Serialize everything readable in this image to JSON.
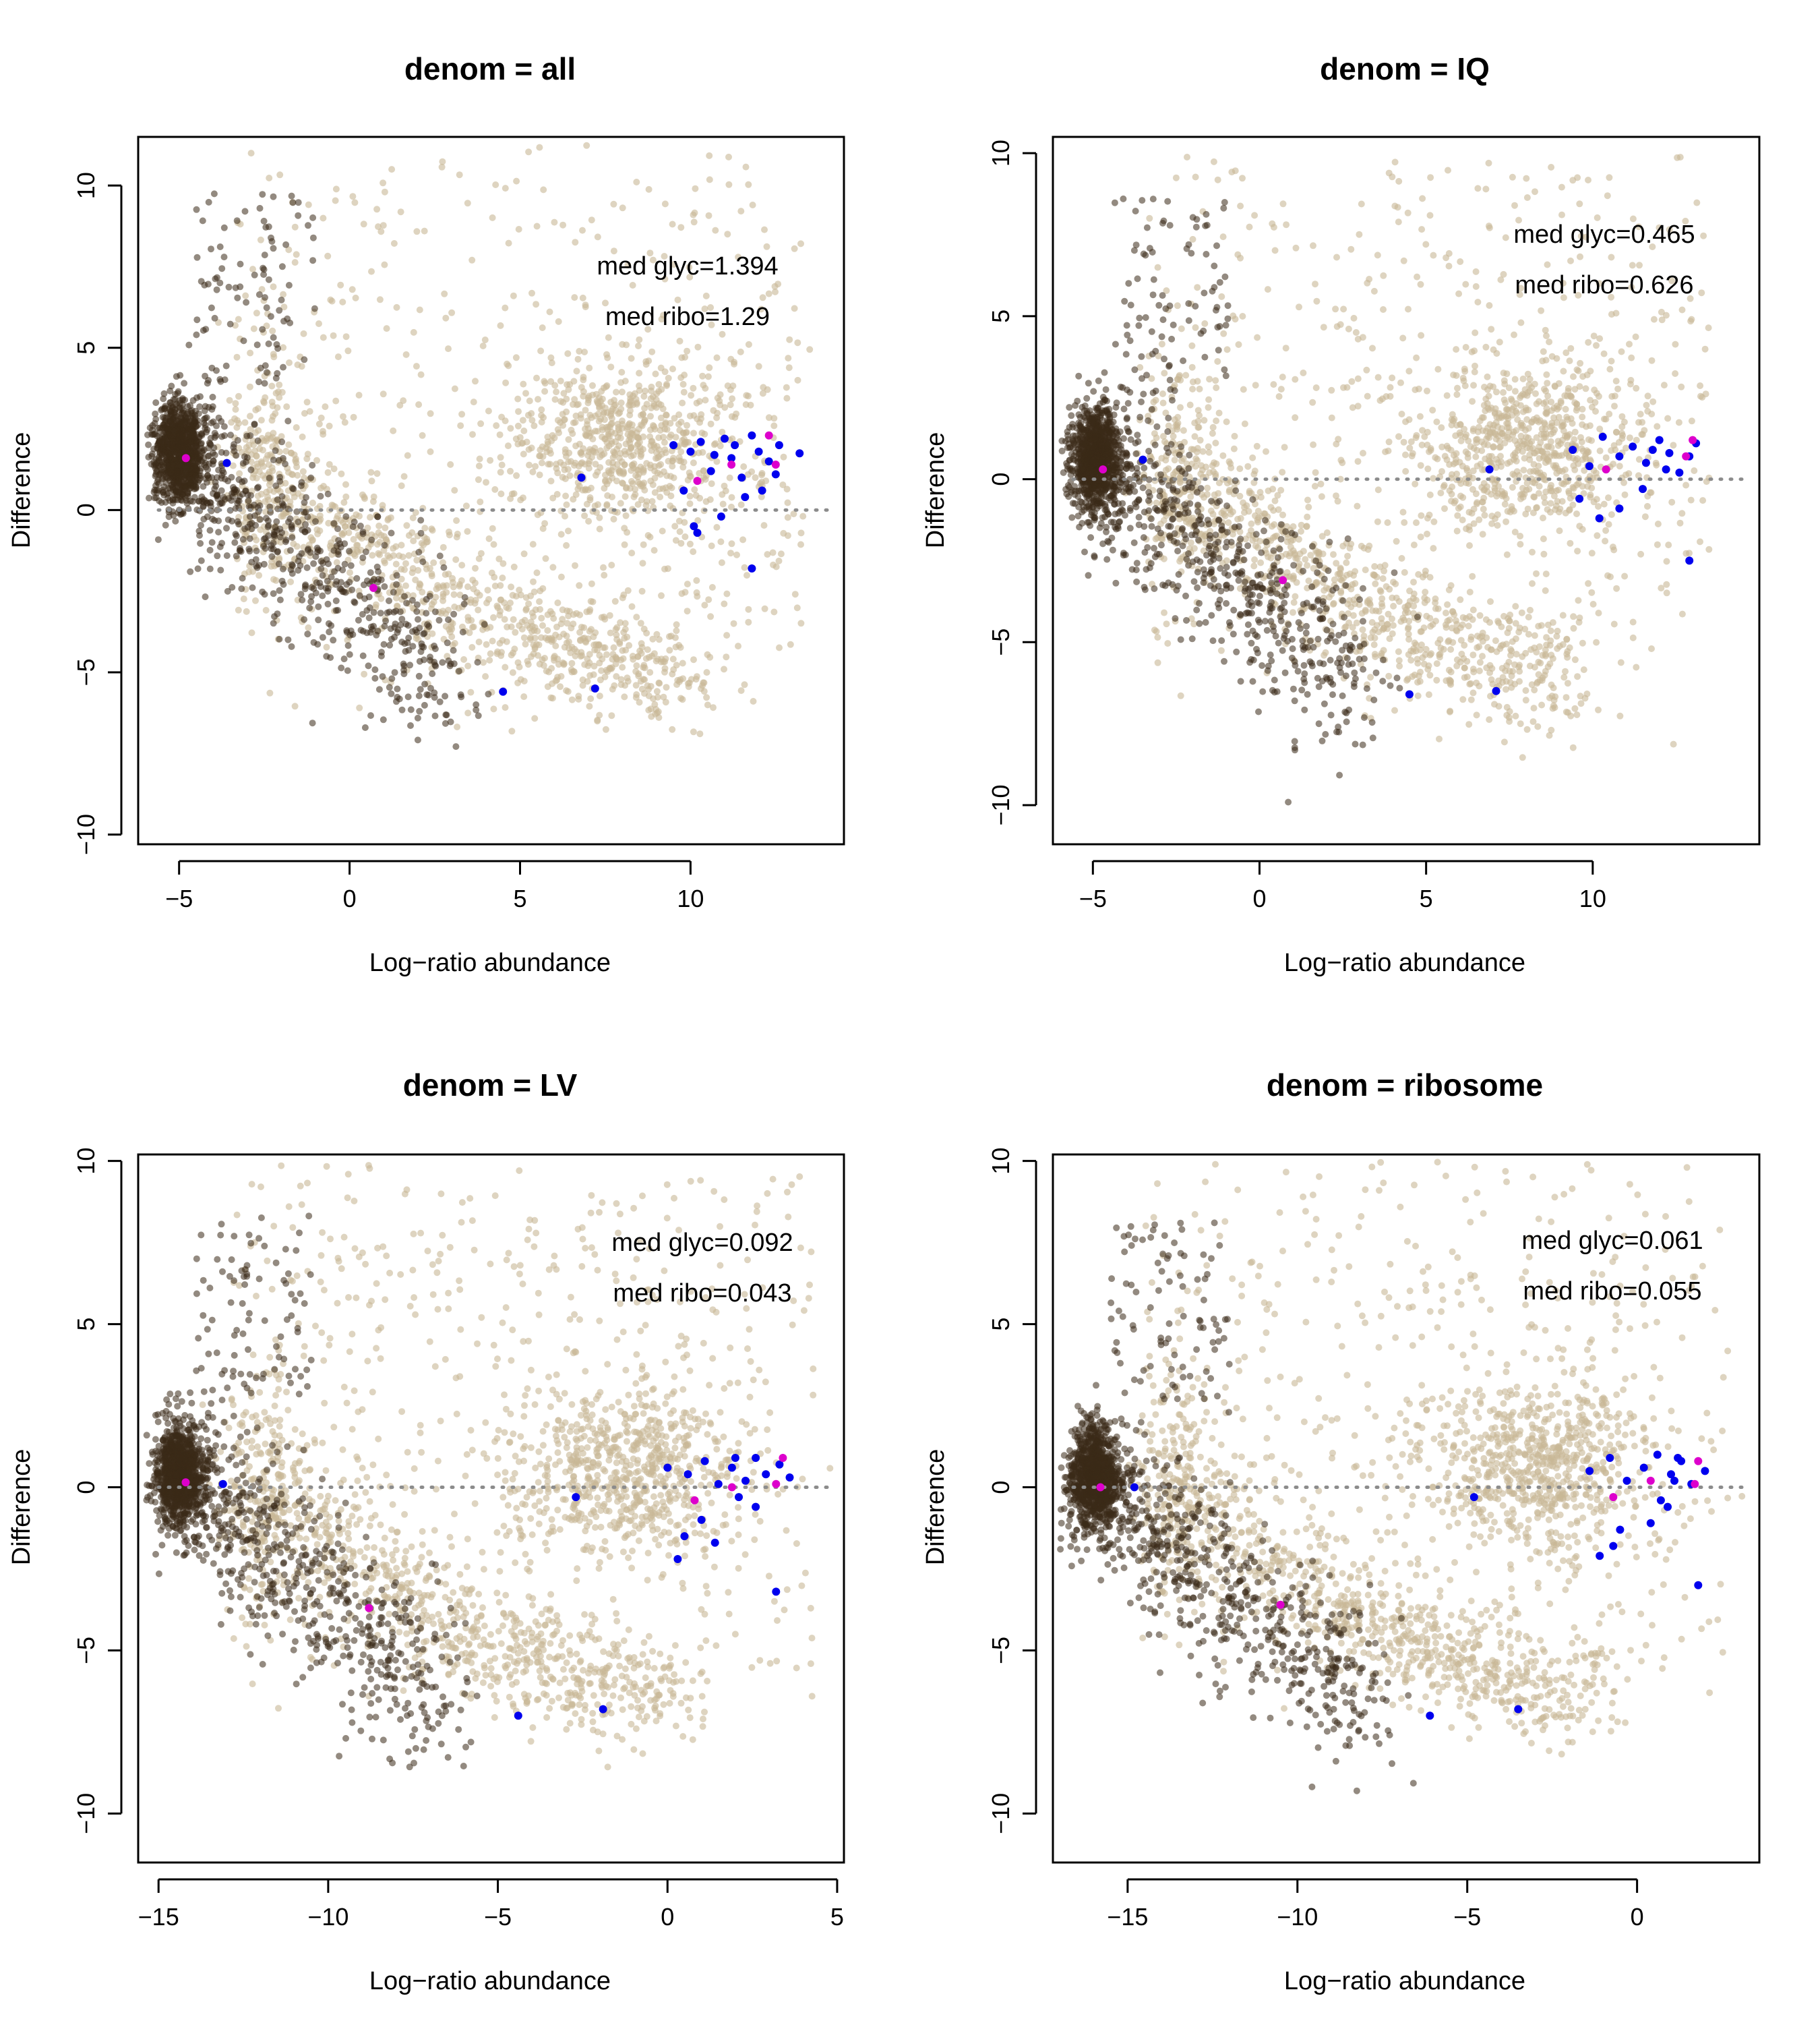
{
  "figure": {
    "colors": {
      "background": "#ffffff",
      "dense_points": "#3a2a17",
      "light_points": "#c8b896",
      "glyc_points": "#0000ee",
      "ribo_points": "#dd00cc",
      "zero_line": "#8c8c8c",
      "axis": "#000000"
    }
  },
  "chart_data": [
    {
      "type": "scatter",
      "title": "denom = all",
      "xlabel": "Log−ratio abundance",
      "ylabel": "Difference",
      "xlim": [
        -6.2,
        14.5
      ],
      "ylim": [
        -10.3,
        11.5
      ],
      "xticks": [
        -5,
        0,
        5,
        10
      ],
      "xtick_labels": [
        "−5",
        "0",
        "5",
        "10"
      ],
      "yticks": [
        -10,
        -5,
        0,
        5,
        10
      ],
      "ytick_labels": [
        "−10",
        "−5",
        "0",
        "5",
        "10"
      ],
      "zero_line": true,
      "grid": false,
      "annotations": [
        "med glyc=1.394",
        "med ribo=1.29"
      ],
      "glyc_points": [
        [
          -3.6,
          1.45
        ],
        [
          6.8,
          1.0
        ],
        [
          9.5,
          2.0
        ],
        [
          10.0,
          1.8
        ],
        [
          10.3,
          2.1
        ],
        [
          10.6,
          1.2
        ],
        [
          11.0,
          2.2
        ],
        [
          11.2,
          1.6
        ],
        [
          11.5,
          1.0
        ],
        [
          11.8,
          2.3
        ],
        [
          12.0,
          1.8
        ],
        [
          12.3,
          1.5
        ],
        [
          12.6,
          2.0
        ],
        [
          13.2,
          1.75
        ],
        [
          11.6,
          0.4
        ],
        [
          10.9,
          -0.2
        ],
        [
          10.1,
          -0.5
        ],
        [
          10.2,
          -0.7
        ],
        [
          9.8,
          0.6
        ],
        [
          11.8,
          -1.8
        ],
        [
          12.5,
          1.1
        ],
        [
          11.3,
          2.0
        ],
        [
          10.7,
          1.7
        ],
        [
          12.1,
          0.6
        ],
        [
          4.5,
          -5.6
        ],
        [
          7.2,
          -5.5
        ]
      ],
      "ribo_points": [
        [
          -4.8,
          1.6
        ],
        [
          10.2,
          0.9
        ],
        [
          11.2,
          1.4
        ],
        [
          12.3,
          2.3
        ],
        [
          12.5,
          1.4
        ],
        [
          0.7,
          -2.4
        ]
      ],
      "dense_cluster": {
        "x_mean": -5.0,
        "y_mean": 1.8
      },
      "light_cluster": {
        "x_mean": 8.0,
        "y_mean": 2.0
      },
      "light_arc": {
        "x_mean": 5.0,
        "y_mean": -5.3
      }
    },
    {
      "type": "scatter",
      "title": "denom = IQ",
      "xlabel": "Log−ratio abundance",
      "ylabel": "Difference",
      "xlim": [
        -6.2,
        15.0
      ],
      "ylim": [
        -11.2,
        10.5
      ],
      "xticks": [
        -5,
        0,
        5,
        10
      ],
      "xtick_labels": [
        "−5",
        "0",
        "5",
        "10"
      ],
      "yticks": [
        -10,
        -5,
        0,
        5,
        10
      ],
      "ytick_labels": [
        "−10",
        "−5",
        "0",
        "5",
        "10"
      ],
      "zero_line": true,
      "grid": false,
      "annotations": [
        "med glyc=0.465",
        "med ribo=0.626"
      ],
      "glyc_points": [
        [
          -3.5,
          0.6
        ],
        [
          6.9,
          0.3
        ],
        [
          9.4,
          0.9
        ],
        [
          9.9,
          0.4
        ],
        [
          10.3,
          1.3
        ],
        [
          10.8,
          0.7
        ],
        [
          11.2,
          1.0
        ],
        [
          11.6,
          0.5
        ],
        [
          12.0,
          1.2
        ],
        [
          12.3,
          0.8
        ],
        [
          12.6,
          0.2
        ],
        [
          12.9,
          0.7
        ],
        [
          13.1,
          1.1
        ],
        [
          11.5,
          -0.3
        ],
        [
          10.8,
          -0.9
        ],
        [
          10.2,
          -1.2
        ],
        [
          9.6,
          -0.6
        ],
        [
          12.9,
          -2.5
        ],
        [
          12.2,
          0.3
        ],
        [
          11.8,
          0.9
        ],
        [
          4.5,
          -6.6
        ],
        [
          7.1,
          -6.5
        ]
      ],
      "ribo_points": [
        [
          -4.7,
          0.3
        ],
        [
          10.4,
          0.3
        ],
        [
          12.8,
          0.7
        ],
        [
          13.0,
          1.2
        ],
        [
          0.7,
          -3.1
        ]
      ],
      "dense_cluster": {
        "x_mean": -4.9,
        "y_mean": 0.6
      },
      "light_cluster": {
        "x_mean": 8.0,
        "y_mean": 1.0
      },
      "light_arc": {
        "x_mean": 4.5,
        "y_mean": -6.3
      }
    },
    {
      "type": "scatter",
      "title": "denom = LV",
      "xlabel": "Log−ratio abundance",
      "ylabel": "Difference",
      "xlim": [
        -15.6,
        5.2
      ],
      "ylim": [
        -11.5,
        10.2
      ],
      "xticks": [
        -15,
        -10,
        -5,
        0,
        5
      ],
      "xtick_labels": [
        "−15",
        "−10",
        "−5",
        "0",
        "5"
      ],
      "yticks": [
        -10,
        -5,
        0,
        5,
        10
      ],
      "ytick_labels": [
        "−10",
        "−5",
        "0",
        "5",
        "10"
      ],
      "zero_line": true,
      "grid": false,
      "annotations": [
        "med glyc=0.092",
        "med ribo=0.043"
      ],
      "glyc_points": [
        [
          -13.1,
          0.1
        ],
        [
          -2.7,
          -0.3
        ],
        [
          0.0,
          0.6
        ],
        [
          0.6,
          0.4
        ],
        [
          1.1,
          0.8
        ],
        [
          1.5,
          0.1
        ],
        [
          1.9,
          0.6
        ],
        [
          2.3,
          0.2
        ],
        [
          2.6,
          0.9
        ],
        [
          2.9,
          0.4
        ],
        [
          3.3,
          0.7
        ],
        [
          3.6,
          0.3
        ],
        [
          1.0,
          -1.0
        ],
        [
          0.5,
          -1.5
        ],
        [
          1.4,
          -1.7
        ],
        [
          0.3,
          -2.2
        ],
        [
          3.2,
          -3.2
        ],
        [
          2.1,
          -0.3
        ],
        [
          2.6,
          -0.6
        ],
        [
          2.0,
          0.9
        ],
        [
          -4.4,
          -7.0
        ],
        [
          -1.9,
          -6.8
        ]
      ],
      "ribo_points": [
        [
          -14.2,
          0.15
        ],
        [
          0.8,
          -0.4
        ],
        [
          1.9,
          0.0
        ],
        [
          3.2,
          0.1
        ],
        [
          3.4,
          0.9
        ],
        [
          -8.8,
          -3.7
        ]
      ],
      "dense_cluster": {
        "x_mean": -14.4,
        "y_mean": 0.4
      },
      "light_cluster": {
        "x_mean": -1.2,
        "y_mean": 0.6
      },
      "light_arc": {
        "x_mean": -5.0,
        "y_mean": -6.6
      }
    },
    {
      "type": "scatter",
      "title": "denom = ribosome",
      "xlabel": "Log−ratio abundance",
      "ylabel": "Difference",
      "xlim": [
        -17.2,
        3.6
      ],
      "ylim": [
        -11.5,
        10.2
      ],
      "xticks": [
        -15,
        -10,
        -5,
        0
      ],
      "xtick_labels": [
        "−15",
        "−10",
        "−5",
        "0"
      ],
      "yticks": [
        -10,
        -5,
        0,
        5,
        10
      ],
      "ytick_labels": [
        "−10",
        "−5",
        "0",
        "5",
        "10"
      ],
      "zero_line": true,
      "grid": false,
      "annotations": [
        "med glyc=0.061",
        "med ribo=0.055"
      ],
      "glyc_points": [
        [
          -14.8,
          0.0
        ],
        [
          -4.8,
          -0.3
        ],
        [
          -1.4,
          0.5
        ],
        [
          -0.8,
          0.9
        ],
        [
          -0.3,
          0.2
        ],
        [
          0.2,
          0.6
        ],
        [
          0.6,
          1.0
        ],
        [
          1.0,
          0.4
        ],
        [
          1.3,
          0.8
        ],
        [
          1.6,
          0.1
        ],
        [
          2.0,
          0.5
        ],
        [
          0.9,
          -0.6
        ],
        [
          0.4,
          -1.1
        ],
        [
          -0.5,
          -1.3
        ],
        [
          -1.1,
          -2.1
        ],
        [
          -0.7,
          -1.8
        ],
        [
          1.8,
          -3.0
        ],
        [
          1.1,
          0.2
        ],
        [
          0.7,
          -0.4
        ],
        [
          1.2,
          0.9
        ],
        [
          -6.1,
          -7.0
        ],
        [
          -3.5,
          -6.8
        ]
      ],
      "ribo_points": [
        [
          -15.8,
          0.0
        ],
        [
          -0.7,
          -0.3
        ],
        [
          0.4,
          0.2
        ],
        [
          1.7,
          0.1
        ],
        [
          1.8,
          0.8
        ],
        [
          -10.5,
          -3.6
        ]
      ],
      "dense_cluster": {
        "x_mean": -16.0,
        "y_mean": 0.3
      },
      "light_cluster": {
        "x_mean": -2.8,
        "y_mean": 0.6
      },
      "light_arc": {
        "x_mean": -6.2,
        "y_mean": -6.6
      }
    }
  ]
}
